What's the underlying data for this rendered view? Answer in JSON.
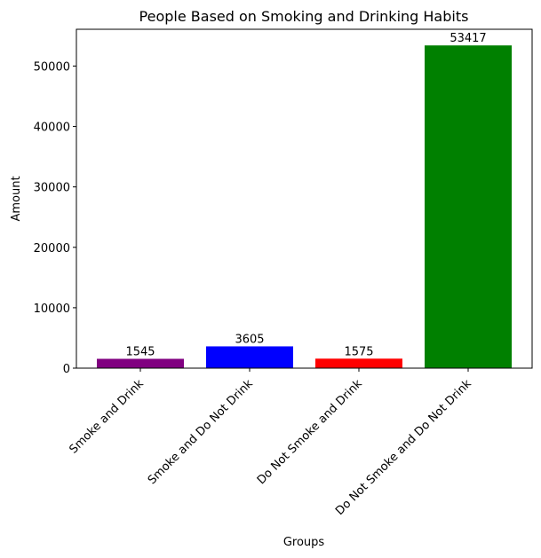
{
  "chart_data": {
    "type": "bar",
    "title": "People Based on Smoking and Drinking Habits",
    "xlabel": "Groups",
    "ylabel": "Amount",
    "categories": [
      "Smoke and Drink",
      "Smoke and Do Not Drink",
      "Do Not Smoke and Drink",
      "Do Not Smoke and Do Not Drink"
    ],
    "values": [
      1545,
      3605,
      1575,
      53417
    ],
    "colors": [
      "#800080",
      "#0000ff",
      "#ff0000",
      "#008000"
    ],
    "yticks": [
      0,
      10000,
      20000,
      30000,
      40000,
      50000
    ],
    "ylim": [
      0,
      56089
    ],
    "grid": false,
    "legend": "none"
  }
}
